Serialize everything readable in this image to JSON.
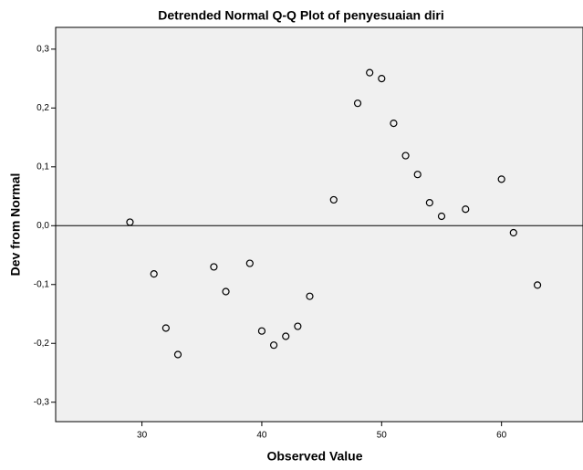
{
  "chart_data": {
    "type": "scatter",
    "title": "Detrended Normal Q-Q Plot of penyesuaian diri",
    "x_label": "Observed Value",
    "y_label": "Dev from Normal",
    "x": [
      29,
      31,
      32,
      33,
      36,
      37,
      39,
      40,
      41,
      42,
      43,
      44,
      46,
      48,
      49,
      50,
      51,
      52,
      53,
      54,
      55,
      57,
      60,
      61,
      63
    ],
    "values": [
      0.006,
      -0.082,
      -0.174,
      -0.219,
      -0.07,
      -0.112,
      -0.064,
      -0.179,
      -0.203,
      -0.188,
      -0.171,
      -0.12,
      0.044,
      0.208,
      0.26,
      0.25,
      0.174,
      0.119,
      0.087,
      0.039,
      0.016,
      0.028,
      0.079,
      -0.012,
      -0.101
    ],
    "color": "#000000",
    "xlim": [
      22.8,
      66.8
    ],
    "ylim": [
      -0.333,
      0.337
    ],
    "xticks": [
      30,
      40,
      50,
      60
    ],
    "yticks": [
      {
        "value": -0.3,
        "label": "-0,3"
      },
      {
        "value": -0.2,
        "label": "-0,2"
      },
      {
        "value": -0.1,
        "label": "-0,1"
      },
      {
        "value": 0,
        "label": "0,0"
      },
      {
        "value": 0.1,
        "label": "0,1"
      },
      {
        "value": 0.2,
        "label": "0,2"
      },
      {
        "value": 0.3,
        "label": "0,3"
      }
    ],
    "reference_line": 0
  }
}
